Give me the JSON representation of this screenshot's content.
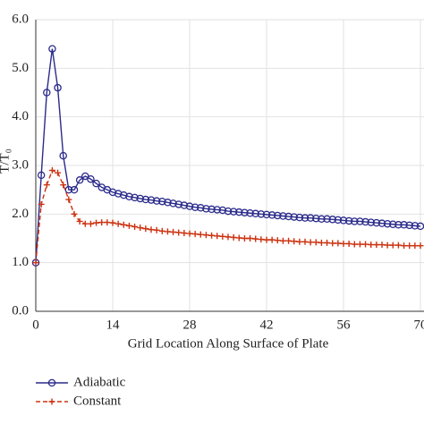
{
  "chart_data": {
    "type": "line",
    "x_label": "Grid Location Along Surface of Plate",
    "y_label": "T/T₀",
    "x": [
      0,
      1,
      2,
      3,
      4,
      5,
      6,
      7,
      8,
      9,
      10,
      11,
      12,
      13,
      14,
      15,
      16,
      17,
      18,
      19,
      20,
      21,
      22,
      23,
      24,
      25,
      26,
      27,
      28,
      29,
      30,
      31,
      32,
      33,
      34,
      35,
      36,
      37,
      38,
      39,
      40,
      41,
      42,
      43,
      44,
      45,
      46,
      47,
      48,
      49,
      50,
      51,
      52,
      53,
      54,
      55,
      56,
      57,
      58,
      59,
      60,
      61,
      62,
      63,
      64,
      65,
      66,
      67,
      68,
      69,
      70
    ],
    "series": [
      {
        "name": "Adiabatic",
        "color": "#2b2b8c",
        "marker": "circle",
        "dash": false,
        "values": [
          1.0,
          2.8,
          4.5,
          5.4,
          4.6,
          3.2,
          2.5,
          2.5,
          2.7,
          2.78,
          2.72,
          2.63,
          2.55,
          2.5,
          2.45,
          2.42,
          2.39,
          2.36,
          2.34,
          2.32,
          2.3,
          2.29,
          2.27,
          2.26,
          2.24,
          2.22,
          2.2,
          2.18,
          2.16,
          2.14,
          2.13,
          2.11,
          2.1,
          2.09,
          2.08,
          2.06,
          2.05,
          2.04,
          2.03,
          2.02,
          2.01,
          2.0,
          1.99,
          1.98,
          1.97,
          1.96,
          1.95,
          1.94,
          1.93,
          1.92,
          1.92,
          1.91,
          1.9,
          1.9,
          1.89,
          1.88,
          1.87,
          1.86,
          1.85,
          1.85,
          1.84,
          1.83,
          1.82,
          1.81,
          1.8,
          1.79,
          1.78,
          1.78,
          1.77,
          1.76,
          1.75
        ]
      },
      {
        "name": "Constant",
        "color": "#cc3311",
        "marker": "plus",
        "dash": true,
        "values": [
          1.0,
          2.2,
          2.6,
          2.9,
          2.85,
          2.6,
          2.3,
          2.0,
          1.85,
          1.8,
          1.8,
          1.82,
          1.83,
          1.83,
          1.82,
          1.8,
          1.78,
          1.76,
          1.74,
          1.72,
          1.7,
          1.68,
          1.67,
          1.65,
          1.64,
          1.63,
          1.62,
          1.61,
          1.6,
          1.59,
          1.58,
          1.57,
          1.56,
          1.55,
          1.54,
          1.53,
          1.52,
          1.51,
          1.5,
          1.5,
          1.49,
          1.48,
          1.47,
          1.47,
          1.46,
          1.45,
          1.45,
          1.44,
          1.43,
          1.43,
          1.42,
          1.42,
          1.41,
          1.41,
          1.4,
          1.4,
          1.39,
          1.39,
          1.38,
          1.38,
          1.38,
          1.37,
          1.37,
          1.37,
          1.36,
          1.36,
          1.36,
          1.35,
          1.35,
          1.35,
          1.35
        ]
      }
    ],
    "xlim": [
      0,
      70
    ],
    "xticks": [
      0,
      14,
      28,
      42,
      56,
      70
    ],
    "ylim": [
      0,
      6
    ],
    "yticks": [
      {
        "value": 0,
        "label": "0.0"
      },
      {
        "value": 1,
        "label": "1.0"
      },
      {
        "value": 2,
        "label": "2.0"
      },
      {
        "value": 3,
        "label": "3.0"
      },
      {
        "value": 4,
        "label": "4.0"
      },
      {
        "value": 5,
        "label": "5.0"
      },
      {
        "value": 6,
        "label": "6.0"
      }
    ],
    "grid": true,
    "legend": "below-left"
  }
}
